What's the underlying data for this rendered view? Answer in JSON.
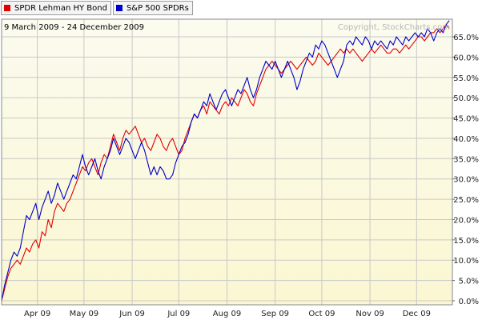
{
  "legend": [
    {
      "name": "SPDR Lehman HY Bond",
      "color": "#e00000"
    },
    {
      "name": "S&P 500 SPDRs",
      "color": "#0000c8"
    }
  ],
  "date_range": "9 March 2009 - 24 December 2009",
  "watermark": "Copyright, StockCharts.com",
  "chart_data": {
    "type": "line",
    "ylim": [
      0,
      70
    ],
    "y_ticks": [
      "0.0%",
      "5.0%",
      "10.0%",
      "15.0%",
      "20.0%",
      "25.0%",
      "30.0%",
      "35.0%",
      "40.0%",
      "45.0%",
      "50.0%",
      "55.0%",
      "60.0%",
      "65.0%"
    ],
    "x_ticks": [
      "Apr 09",
      "May 09",
      "Jun 09",
      "Jul 09",
      "Aug 09",
      "Sep 09",
      "Oct 09",
      "Nov 09",
      "Dec 09"
    ],
    "x_tick_days": [
      23,
      53,
      84,
      114,
      145,
      176,
      206,
      237,
      267
    ],
    "x_range": [
      0,
      290
    ],
    "grid": true,
    "background_gradient": [
      "#fbfbef",
      "#fbf7d2"
    ],
    "series": [
      {
        "name": "SPDR Lehman HY Bond",
        "color": "#e00000",
        "points": [
          [
            0,
            0
          ],
          [
            2,
            3
          ],
          [
            4,
            6
          ],
          [
            6,
            8
          ],
          [
            8,
            9
          ],
          [
            10,
            10
          ],
          [
            12,
            9
          ],
          [
            14,
            11
          ],
          [
            16,
            13
          ],
          [
            18,
            12
          ],
          [
            20,
            14
          ],
          [
            22,
            15
          ],
          [
            24,
            13
          ],
          [
            26,
            17
          ],
          [
            28,
            16
          ],
          [
            30,
            20
          ],
          [
            32,
            18
          ],
          [
            34,
            22
          ],
          [
            36,
            24
          ],
          [
            38,
            23
          ],
          [
            40,
            22
          ],
          [
            42,
            24
          ],
          [
            44,
            25
          ],
          [
            46,
            27
          ],
          [
            48,
            29
          ],
          [
            50,
            31
          ],
          [
            52,
            33
          ],
          [
            54,
            32
          ],
          [
            56,
            34
          ],
          [
            58,
            35
          ],
          [
            60,
            33
          ],
          [
            62,
            31
          ],
          [
            64,
            34
          ],
          [
            66,
            36
          ],
          [
            68,
            35
          ],
          [
            70,
            38
          ],
          [
            72,
            41
          ],
          [
            74,
            39
          ],
          [
            76,
            37
          ],
          [
            78,
            40
          ],
          [
            80,
            42
          ],
          [
            82,
            41
          ],
          [
            84,
            42
          ],
          [
            86,
            43
          ],
          [
            88,
            41
          ],
          [
            90,
            39
          ],
          [
            92,
            40
          ],
          [
            94,
            38
          ],
          [
            96,
            37
          ],
          [
            98,
            39
          ],
          [
            100,
            41
          ],
          [
            102,
            40
          ],
          [
            104,
            38
          ],
          [
            106,
            37
          ],
          [
            108,
            39
          ],
          [
            110,
            40
          ],
          [
            112,
            38
          ],
          [
            114,
            36
          ],
          [
            116,
            37
          ],
          [
            118,
            40
          ],
          [
            120,
            42
          ],
          [
            122,
            44
          ],
          [
            124,
            46
          ],
          [
            126,
            45
          ],
          [
            128,
            47
          ],
          [
            130,
            48
          ],
          [
            132,
            46
          ],
          [
            134,
            49
          ],
          [
            136,
            48
          ],
          [
            138,
            47
          ],
          [
            140,
            46
          ],
          [
            142,
            48
          ],
          [
            144,
            49
          ],
          [
            146,
            48
          ],
          [
            148,
            50
          ],
          [
            150,
            49
          ],
          [
            152,
            48
          ],
          [
            154,
            50
          ],
          [
            156,
            52
          ],
          [
            158,
            51
          ],
          [
            160,
            49
          ],
          [
            162,
            48
          ],
          [
            164,
            51
          ],
          [
            166,
            53
          ],
          [
            168,
            55
          ],
          [
            170,
            57
          ],
          [
            172,
            58
          ],
          [
            174,
            59
          ],
          [
            176,
            58
          ],
          [
            178,
            57
          ],
          [
            180,
            56
          ],
          [
            182,
            57
          ],
          [
            184,
            58
          ],
          [
            186,
            59
          ],
          [
            188,
            58
          ],
          [
            190,
            57
          ],
          [
            192,
            58
          ],
          [
            194,
            59
          ],
          [
            196,
            60
          ],
          [
            198,
            59
          ],
          [
            200,
            58
          ],
          [
            202,
            59
          ],
          [
            204,
            61
          ],
          [
            206,
            60
          ],
          [
            208,
            59
          ],
          [
            210,
            58
          ],
          [
            212,
            59
          ],
          [
            214,
            60
          ],
          [
            216,
            61
          ],
          [
            218,
            62
          ],
          [
            220,
            61
          ],
          [
            222,
            62
          ],
          [
            224,
            61
          ],
          [
            226,
            62
          ],
          [
            228,
            61
          ],
          [
            230,
            60
          ],
          [
            232,
            59
          ],
          [
            234,
            60
          ],
          [
            236,
            61
          ],
          [
            238,
            62
          ],
          [
            240,
            61
          ],
          [
            242,
            62
          ],
          [
            244,
            63
          ],
          [
            246,
            62
          ],
          [
            248,
            61
          ],
          [
            250,
            61
          ],
          [
            252,
            62
          ],
          [
            254,
            62
          ],
          [
            256,
            61
          ],
          [
            258,
            62
          ],
          [
            260,
            63
          ],
          [
            262,
            62
          ],
          [
            264,
            63
          ],
          [
            266,
            64
          ],
          [
            268,
            65
          ],
          [
            270,
            65
          ],
          [
            272,
            64
          ],
          [
            274,
            65
          ],
          [
            276,
            66
          ],
          [
            278,
            66
          ],
          [
            280,
            67
          ],
          [
            282,
            66
          ],
          [
            284,
            67
          ],
          [
            286,
            68
          ],
          [
            288,
            67
          ]
        ]
      },
      {
        "name": "S&P 500 SPDRs",
        "color": "#0000c8",
        "points": [
          [
            0,
            0
          ],
          [
            2,
            4
          ],
          [
            4,
            7
          ],
          [
            6,
            10
          ],
          [
            8,
            12
          ],
          [
            10,
            11
          ],
          [
            12,
            13
          ],
          [
            14,
            17
          ],
          [
            16,
            21
          ],
          [
            18,
            20
          ],
          [
            20,
            22
          ],
          [
            22,
            24
          ],
          [
            24,
            20
          ],
          [
            26,
            23
          ],
          [
            28,
            25
          ],
          [
            30,
            27
          ],
          [
            32,
            24
          ],
          [
            34,
            26
          ],
          [
            36,
            29
          ],
          [
            38,
            27
          ],
          [
            40,
            25
          ],
          [
            42,
            27
          ],
          [
            44,
            29
          ],
          [
            46,
            31
          ],
          [
            48,
            30
          ],
          [
            50,
            33
          ],
          [
            52,
            36
          ],
          [
            54,
            33
          ],
          [
            56,
            31
          ],
          [
            58,
            33
          ],
          [
            60,
            35
          ],
          [
            62,
            32
          ],
          [
            64,
            30
          ],
          [
            66,
            33
          ],
          [
            68,
            35
          ],
          [
            70,
            37
          ],
          [
            72,
            40
          ],
          [
            74,
            38
          ],
          [
            76,
            36
          ],
          [
            78,
            38
          ],
          [
            80,
            40
          ],
          [
            82,
            39
          ],
          [
            84,
            37
          ],
          [
            86,
            35
          ],
          [
            88,
            37
          ],
          [
            90,
            39
          ],
          [
            92,
            37
          ],
          [
            94,
            34
          ],
          [
            96,
            31
          ],
          [
            98,
            33
          ],
          [
            100,
            31
          ],
          [
            102,
            33
          ],
          [
            104,
            32
          ],
          [
            106,
            30
          ],
          [
            108,
            30
          ],
          [
            110,
            31
          ],
          [
            112,
            34
          ],
          [
            114,
            36
          ],
          [
            116,
            38
          ],
          [
            118,
            39
          ],
          [
            120,
            41
          ],
          [
            122,
            44
          ],
          [
            124,
            46
          ],
          [
            126,
            45
          ],
          [
            128,
            47
          ],
          [
            130,
            49
          ],
          [
            132,
            48
          ],
          [
            134,
            51
          ],
          [
            136,
            49
          ],
          [
            138,
            47
          ],
          [
            140,
            49
          ],
          [
            142,
            51
          ],
          [
            144,
            52
          ],
          [
            146,
            50
          ],
          [
            148,
            48
          ],
          [
            150,
            50
          ],
          [
            152,
            52
          ],
          [
            154,
            51
          ],
          [
            156,
            53
          ],
          [
            158,
            55
          ],
          [
            160,
            52
          ],
          [
            162,
            50
          ],
          [
            164,
            52
          ],
          [
            166,
            55
          ],
          [
            168,
            57
          ],
          [
            170,
            59
          ],
          [
            172,
            58
          ],
          [
            174,
            57
          ],
          [
            176,
            59
          ],
          [
            178,
            57
          ],
          [
            180,
            55
          ],
          [
            182,
            57
          ],
          [
            184,
            59
          ],
          [
            186,
            57
          ],
          [
            188,
            55
          ],
          [
            190,
            52
          ],
          [
            192,
            54
          ],
          [
            194,
            57
          ],
          [
            196,
            59
          ],
          [
            198,
            61
          ],
          [
            200,
            60
          ],
          [
            202,
            63
          ],
          [
            204,
            62
          ],
          [
            206,
            64
          ],
          [
            208,
            63
          ],
          [
            210,
            61
          ],
          [
            212,
            59
          ],
          [
            214,
            57
          ],
          [
            216,
            55
          ],
          [
            218,
            57
          ],
          [
            220,
            59
          ],
          [
            222,
            63
          ],
          [
            224,
            64
          ],
          [
            226,
            63
          ],
          [
            228,
            65
          ],
          [
            230,
            64
          ],
          [
            232,
            63
          ],
          [
            234,
            65
          ],
          [
            236,
            64
          ],
          [
            238,
            62
          ],
          [
            240,
            64
          ],
          [
            242,
            63
          ],
          [
            244,
            64
          ],
          [
            246,
            63
          ],
          [
            248,
            62
          ],
          [
            250,
            64
          ],
          [
            252,
            63
          ],
          [
            254,
            65
          ],
          [
            256,
            64
          ],
          [
            258,
            63
          ],
          [
            260,
            65
          ],
          [
            262,
            64
          ],
          [
            264,
            65
          ],
          [
            266,
            66
          ],
          [
            268,
            65
          ],
          [
            270,
            66
          ],
          [
            272,
            65
          ],
          [
            274,
            67
          ],
          [
            276,
            66
          ],
          [
            278,
            64
          ],
          [
            280,
            66
          ],
          [
            282,
            67
          ],
          [
            284,
            66
          ],
          [
            286,
            68
          ],
          [
            288,
            69
          ]
        ]
      }
    ]
  }
}
